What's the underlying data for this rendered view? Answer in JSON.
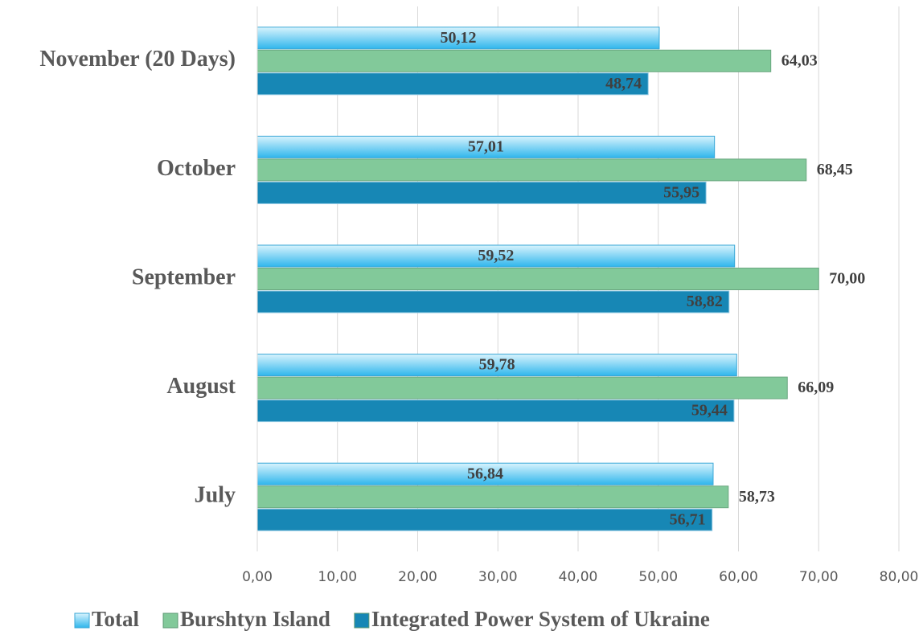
{
  "chart_data": {
    "type": "bar",
    "orientation": "horizontal",
    "categories": [
      "November (20 Days)",
      "October",
      "September",
      "August",
      "July"
    ],
    "series": [
      {
        "name": "Total",
        "color": "#4fc3f0",
        "values": [
          50.12,
          57.01,
          59.52,
          59.78,
          56.84
        ],
        "value_labels": [
          "50,12",
          "57,01",
          "59,52",
          "59,78",
          "56,84"
        ]
      },
      {
        "name": "Burshtyn Island",
        "color": "#82c99a",
        "values": [
          64.03,
          68.45,
          70.0,
          66.09,
          58.73
        ],
        "value_labels": [
          "64,03",
          "68,45",
          "70,00",
          "66,09",
          "58,73"
        ]
      },
      {
        "name": "Integrated Power System of Ukraine",
        "color": "#1787b5",
        "values": [
          48.74,
          55.95,
          58.82,
          59.44,
          56.71
        ],
        "value_labels": [
          "48,74",
          "55,95",
          "58,82",
          "59,44",
          "56,71"
        ]
      }
    ],
    "xlim": [
      0,
      80
    ],
    "xticks": [
      {
        "value": 0,
        "label": "0,00"
      },
      {
        "value": 10,
        "label": "10,00"
      },
      {
        "value": 20,
        "label": "20,00"
      },
      {
        "value": 30,
        "label": "30,00"
      },
      {
        "value": 40,
        "label": "40,00"
      },
      {
        "value": 50,
        "label": "50,00"
      },
      {
        "value": 60,
        "label": "60,00"
      },
      {
        "value": 70,
        "label": "70,00"
      },
      {
        "value": 80,
        "label": "80,00"
      }
    ],
    "grid": true,
    "legend": "bottom"
  }
}
